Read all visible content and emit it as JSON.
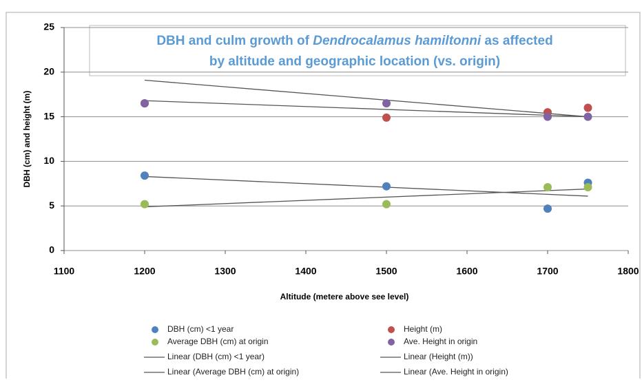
{
  "chart_data": {
    "type": "scatter",
    "title_lines": [
      [
        {
          "text": "DBH and culm growth of "
        },
        {
          "text": "Dendrocalamus hamiltonni",
          "italic": true
        },
        {
          "text": " as affected"
        }
      ],
      [
        {
          "text": "by altitude and geographic location (vs. origin)"
        }
      ]
    ],
    "x_label": "Altitude (metere above see level)",
    "y_label": "DBH (cm)  and height (m)",
    "xlim": [
      1100,
      1800
    ],
    "xticks": [
      1100,
      1200,
      1300,
      1400,
      1500,
      1600,
      1700,
      1800
    ],
    "ylim": [
      0,
      25
    ],
    "yticks": [
      0,
      5,
      10,
      15,
      20,
      25
    ],
    "grid": true,
    "legend": "bottom",
    "series": [
      {
        "name": "DBH (cm) <1 year",
        "kind": "points",
        "color": "#4f81bd",
        "x": [
          1200,
          1500,
          1700,
          1750
        ],
        "values": [
          8.4,
          7.2,
          4.7,
          7.6
        ]
      },
      {
        "name": "Height (m)",
        "kind": "points",
        "color": "#c0504d",
        "x": [
          1200,
          1500,
          1700,
          1750
        ],
        "values": [
          16.5,
          14.9,
          15.5,
          16.0
        ]
      },
      {
        "name": "Average DBH (cm) at origin",
        "kind": "points",
        "color": "#9bbb59",
        "x": [
          1200,
          1500,
          1700,
          1750
        ],
        "values": [
          5.2,
          5.2,
          7.1,
          7.1
        ]
      },
      {
        "name": "Ave. Height in origin",
        "kind": "points",
        "color": "#8064a2",
        "x": [
          1200,
          1500,
          1700,
          1750
        ],
        "values": [
          16.5,
          16.5,
          15.0,
          15.0
        ]
      },
      {
        "name": "Linear (DBH (cm) <1 year)",
        "kind": "line",
        "color": "#555555",
        "x": [
          1200,
          1750
        ],
        "values": [
          8.3,
          6.1
        ]
      },
      {
        "name": "Linear (Height (m))",
        "kind": "line",
        "color": "#555555",
        "x": [
          1200,
          1750
        ],
        "values": [
          19.1,
          15.0
        ]
      },
      {
        "name": "Linear (Average DBH (cm) at origin)",
        "kind": "line",
        "color": "#555555",
        "x": [
          1200,
          1750
        ],
        "values": [
          4.9,
          6.9
        ]
      },
      {
        "name": "Linear (Ave. Height in origin)",
        "kind": "line",
        "color": "#555555",
        "x": [
          1200,
          1750
        ],
        "values": [
          16.8,
          15.0
        ]
      }
    ]
  }
}
